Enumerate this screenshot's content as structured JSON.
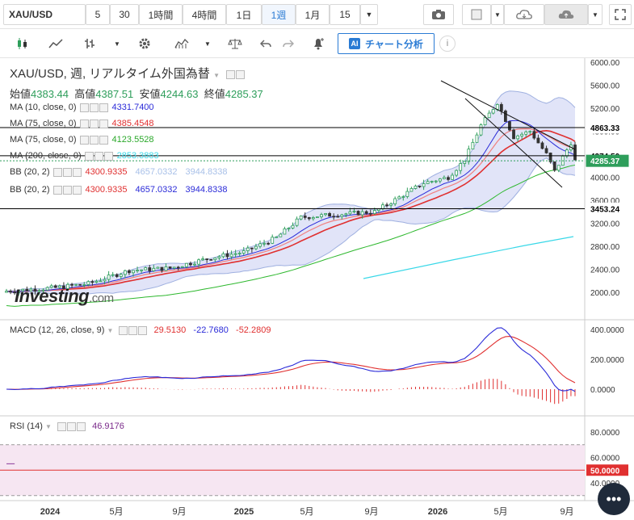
{
  "toolbar": {
    "symbol": "XAU/USD",
    "intervals": [
      "5",
      "30",
      "1時間",
      "4時間",
      "1日",
      "1週",
      "1月",
      "15"
    ],
    "active_interval": "1週",
    "analysis_button": "チャート分析"
  },
  "legend": {
    "title": "XAU/USD, 週, リアルタイム外国為替",
    "open_label": "始値",
    "open": "4383.44",
    "high_label": "高値",
    "high": "4387.51",
    "low_label": "安値",
    "low": "4244.63",
    "close_label": "終値",
    "close": "4285.37",
    "indicators": [
      {
        "label": "MA (10, close, 0)",
        "values": [
          "4331.7400"
        ],
        "colors": [
          "#2a2ad8"
        ]
      },
      {
        "label": "MA (75, close, 0)",
        "values": [
          "4385.4548"
        ],
        "colors": [
          "#e03030"
        ]
      },
      {
        "label": "MA (75, close, 0)",
        "values": [
          "4123.5528"
        ],
        "colors": [
          "#2aa82a"
        ]
      },
      {
        "label": "MA (200, close, 0)",
        "values": [
          "2853.3883"
        ],
        "colors": [
          "#3ad8e8"
        ]
      },
      {
        "label": "BB (20, 2)",
        "values": [
          "4300.9335",
          "4657.0332",
          "3944.8338"
        ],
        "colors": [
          "#e03030",
          "#a8c0e8",
          "#a8c0e8"
        ]
      },
      {
        "label": "BB (20, 2)",
        "values": [
          "4300.9335",
          "4657.0332",
          "3944.8338"
        ],
        "colors": [
          "#e03030",
          "#2a2ad8",
          "#2a2ad8"
        ]
      }
    ]
  },
  "price_axis": [
    "6000.00",
    "5600.00",
    "5200.00",
    "4800.00",
    "4400.00",
    "4000.00",
    "3600.00",
    "3200.00",
    "2800.00",
    "2400.00",
    "2000.00"
  ],
  "price_tags": [
    {
      "value": "4863.33",
      "bg": "#ffffff",
      "color": "#000000"
    },
    {
      "value": "4374.50",
      "bg": "#ffffff",
      "color": "#000000"
    },
    {
      "value": "4285.37",
      "bg": "#2e9e5b",
      "color": "#ffffff"
    },
    {
      "value": "3453.24",
      "bg": "#ffffff",
      "color": "#000000"
    }
  ],
  "macd": {
    "label": "MACD (12, 26, close, 9)",
    "values": [
      "29.5130",
      "-22.7680",
      "-52.2809"
    ],
    "colors": [
      "#e03030",
      "#2a2ad8",
      "#e03030"
    ],
    "axis": [
      "400.0000",
      "200.0000",
      "0.0000"
    ]
  },
  "rsi": {
    "label": "RSI (14)",
    "value": "46.9176",
    "axis": [
      "80.0000",
      "60.0000",
      "50.0000",
      "40.0000"
    ]
  },
  "time_axis": [
    "2024",
    "5月",
    "9月",
    "2025",
    "5月",
    "9月",
    "2026",
    "5月",
    "9月"
  ],
  "watermark": "Investing",
  "watermark_suffix": ".com"
}
